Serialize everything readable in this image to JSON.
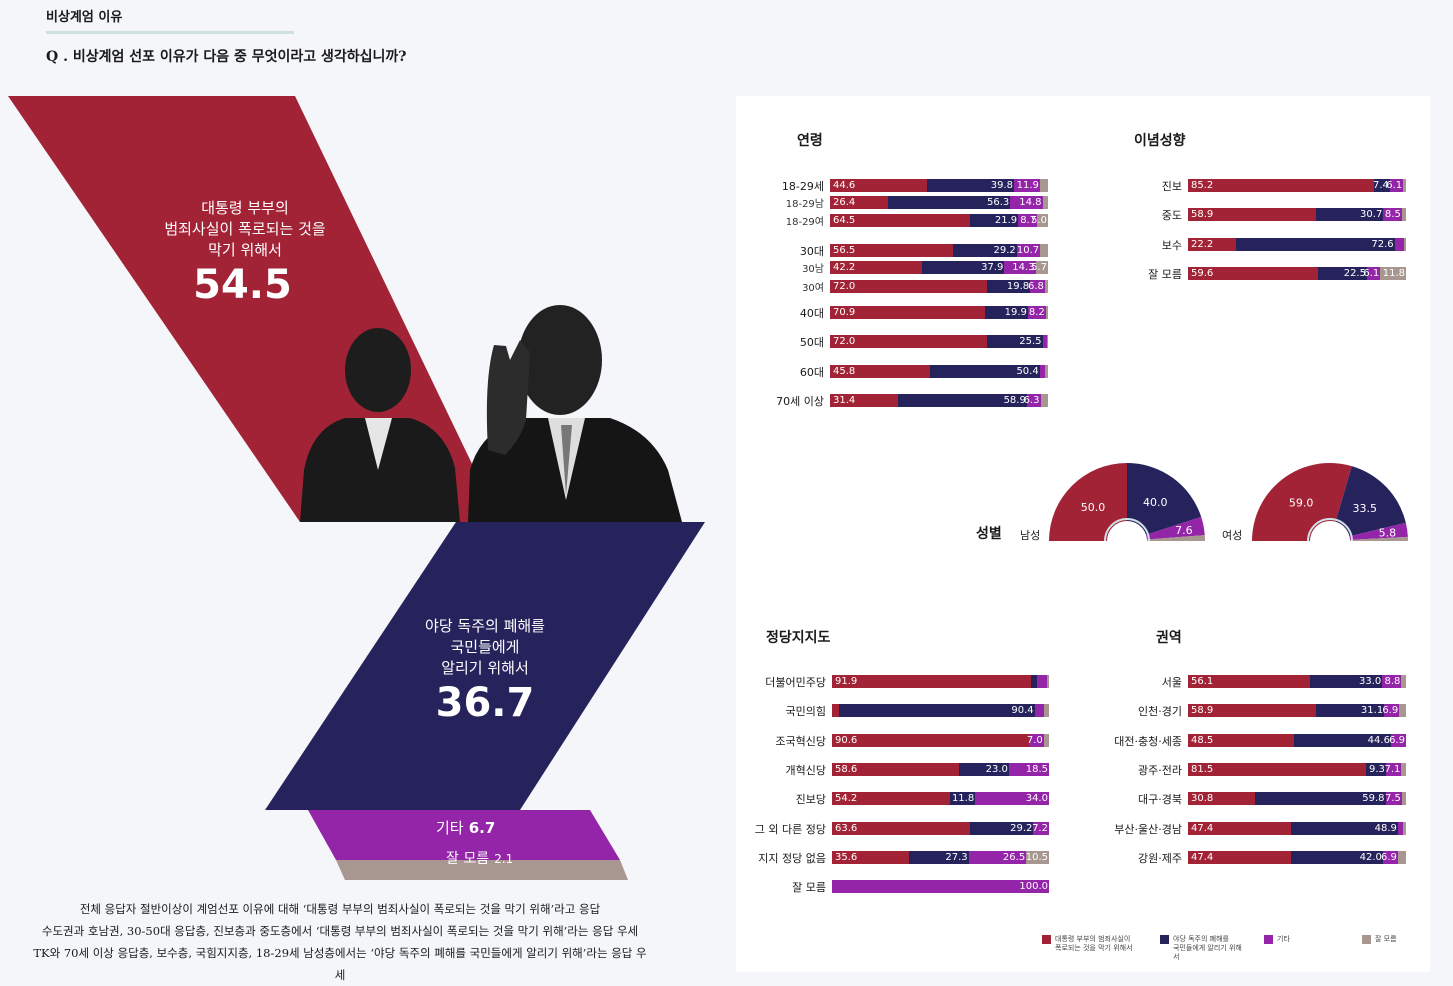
{
  "section_title": "비상계엄 이유",
  "question": "Q . 비상계엄 선포 이유가 다음 중 무엇이라고 생각하십니까?",
  "colors": {
    "hide_scandal": "#a32336",
    "opposition": "#26235c",
    "other": "#9424a8",
    "dont_know": "#a89690"
  },
  "overall": {
    "hide_scandal": {
      "label_lines": [
        "대통령 부부의",
        "범죄사실이 폭로되는 것을",
        "막기 위해서"
      ],
      "value": "54.5"
    },
    "opposition": {
      "label_lines": [
        "야당 독주의 폐해를",
        "국민들에게",
        "알리기 위해서"
      ],
      "value": "36.7"
    },
    "other": {
      "label": "기타",
      "value": "6.7"
    },
    "dont_know": {
      "label": "잘 모름",
      "value": "2.1"
    }
  },
  "summary_lines": [
    "전체 응답자 절반이상이 계엄선포 이유에 대해 ‘대통령 부부의 범죄사실이 폭로되는 것을 막기 위해’라고 응답",
    "수도권과 호남권, 30-50대 응답층, 진보층과 중도층에서 ‘대통령 부부의 범죄사실이 폭로되는 것을 막기 위해’라는 응답 우세",
    "TK와 70세 이상 응답층, 보수층, 국힘지지층, 18-29세 남성층에서는 ‘야당 독주의 폐해를 국민들에게 알리기 위해’라는 응답 우세"
  ],
  "legend": [
    {
      "key": "hide_scandal",
      "label_lines": [
        "대통령 부부의 범죄사실이",
        "폭로되는 것을 막기 위해서"
      ]
    },
    {
      "key": "opposition",
      "label_lines": [
        "야당 독주의 폐해를",
        "국민들에게 알리기 위해서"
      ]
    },
    {
      "key": "other",
      "label_lines": [
        "기타"
      ]
    },
    {
      "key": "dont_know",
      "label_lines": [
        "잘 모름"
      ]
    }
  ],
  "gender": {
    "title": "성별",
    "groups": [
      {
        "name": "남성",
        "values": [
          50.0,
          40.0,
          7.6,
          2.4
        ],
        "labels": [
          "50.0",
          "40.0",
          "7.6",
          ""
        ]
      },
      {
        "name": "여성",
        "values": [
          59.0,
          33.5,
          5.8,
          1.7
        ],
        "labels": [
          "59.0",
          "33.5",
          "5.8",
          ""
        ]
      }
    ]
  },
  "chart_data": [
    {
      "type": "bar",
      "stacked": true,
      "title": "연령",
      "series_keys": [
        "hide_scandal",
        "opposition",
        "other",
        "dont_know"
      ],
      "rows": [
        {
          "label": "18-29세",
          "sub": false,
          "values": [
            44.6,
            39.8,
            11.9,
            3.7
          ],
          "labels": [
            "44.6",
            "39.8",
            "11.9",
            ""
          ]
        },
        {
          "label": "18-29남",
          "sub": true,
          "values": [
            26.4,
            56.3,
            14.8,
            2.5
          ],
          "labels": [
            "26.4",
            "56.3",
            "14.8",
            ""
          ]
        },
        {
          "label": "18-29여",
          "sub": true,
          "values": [
            64.5,
            21.9,
            8.7,
            5.0
          ],
          "labels": [
            "64.5",
            "21.9",
            "8.7",
            "5.0"
          ]
        },
        {
          "label": "30대",
          "sub": false,
          "values": [
            56.5,
            29.2,
            10.7,
            3.6
          ],
          "labels": [
            "56.5",
            "29.2",
            "10.7",
            ""
          ]
        },
        {
          "label": "30남",
          "sub": true,
          "values": [
            42.2,
            37.9,
            14.3,
            5.7
          ],
          "labels": [
            "42.2",
            "37.9",
            "14.3",
            "5.7"
          ]
        },
        {
          "label": "30여",
          "sub": true,
          "values": [
            72.0,
            19.8,
            6.8,
            1.4
          ],
          "labels": [
            "72.0",
            "19.8",
            "6.8",
            ""
          ]
        },
        {
          "label": "40대",
          "sub": false,
          "values": [
            70.9,
            19.9,
            8.2,
            1.0
          ],
          "labels": [
            "70.9",
            "19.9",
            "8.2",
            ""
          ]
        },
        {
          "label": "50대",
          "sub": false,
          "values": [
            72.0,
            25.5,
            2.0,
            0.5
          ],
          "labels": [
            "72.0",
            "25.5",
            "",
            ""
          ]
        },
        {
          "label": "60대",
          "sub": false,
          "values": [
            45.8,
            50.4,
            2.5,
            1.3
          ],
          "labels": [
            "45.8",
            "50.4",
            "",
            ""
          ]
        },
        {
          "label": "70세 이상",
          "sub": false,
          "values": [
            31.4,
            58.9,
            6.3,
            3.4
          ],
          "labels": [
            "31.4",
            "58.9",
            "6.3",
            ""
          ]
        }
      ]
    },
    {
      "type": "bar",
      "stacked": true,
      "title": "이념성향",
      "series_keys": [
        "hide_scandal",
        "opposition",
        "other",
        "dont_know"
      ],
      "rows": [
        {
          "label": "진보",
          "sub": false,
          "values": [
            85.2,
            7.4,
            6.1,
            1.3
          ],
          "labels": [
            "85.2",
            "7.4",
            "6.1",
            ""
          ]
        },
        {
          "label": "중도",
          "sub": false,
          "values": [
            58.9,
            30.7,
            8.5,
            1.9
          ],
          "labels": [
            "58.9",
            "30.7",
            "8.5",
            ""
          ]
        },
        {
          "label": "보수",
          "sub": false,
          "values": [
            22.2,
            72.6,
            4.2,
            1.0
          ],
          "labels": [
            "22.2",
            "72.6",
            "",
            ""
          ]
        },
        {
          "label": "잘 모름",
          "sub": false,
          "values": [
            59.6,
            22.5,
            6.1,
            11.8
          ],
          "labels": [
            "59.6",
            "22.5",
            "6.1",
            "11.8"
          ]
        }
      ]
    },
    {
      "type": "bar",
      "stacked": true,
      "title": "정당지지도",
      "series_keys": [
        "hide_scandal",
        "opposition",
        "other",
        "dont_know"
      ],
      "rows": [
        {
          "label": "더불어민주당",
          "sub": false,
          "values": [
            91.9,
            2.5,
            4.5,
            1.1
          ],
          "labels": [
            "91.9",
            "",
            "",
            ""
          ]
        },
        {
          "label": "국민의힘",
          "sub": false,
          "values": [
            3.0,
            90.4,
            4.5,
            2.1
          ],
          "labels": [
            "",
            "90.4",
            "",
            ""
          ]
        },
        {
          "label": "조국혁신당",
          "sub": false,
          "values": [
            90.6,
            0.0,
            7.0,
            2.4
          ],
          "labels": [
            "90.6",
            "",
            "7.0",
            ""
          ]
        },
        {
          "label": "개혁신당",
          "sub": false,
          "values": [
            58.6,
            23.0,
            18.5,
            0.0
          ],
          "labels": [
            "58.6",
            "23.0",
            "18.5",
            ""
          ]
        },
        {
          "label": "진보당",
          "sub": false,
          "values": [
            54.2,
            11.8,
            34.0,
            0.0
          ],
          "labels": [
            "54.2",
            "11.8",
            "34.0",
            ""
          ]
        },
        {
          "label": "그 외 다른 정당",
          "sub": false,
          "values": [
            63.6,
            29.2,
            7.2,
            0.0
          ],
          "labels": [
            "63.6",
            "29.2",
            "7.2",
            ""
          ]
        },
        {
          "label": "지지 정당 없음",
          "sub": false,
          "values": [
            35.6,
            27.3,
            26.5,
            10.5
          ],
          "labels": [
            "35.6",
            "27.3",
            "26.5",
            "10.5"
          ]
        },
        {
          "label": "잘 모름",
          "sub": false,
          "values": [
            0.0,
            0.0,
            100.0,
            0.0
          ],
          "labels": [
            "",
            "",
            "100.0",
            ""
          ]
        }
      ]
    },
    {
      "type": "bar",
      "stacked": true,
      "title": "권역",
      "series_keys": [
        "hide_scandal",
        "opposition",
        "other",
        "dont_know"
      ],
      "rows": [
        {
          "label": "서울",
          "sub": false,
          "values": [
            56.1,
            33.0,
            8.8,
            2.1
          ],
          "labels": [
            "56.1",
            "33.0",
            "8.8",
            ""
          ]
        },
        {
          "label": "인천·경기",
          "sub": false,
          "values": [
            58.9,
            31.1,
            6.9,
            3.1
          ],
          "labels": [
            "58.9",
            "31.1",
            "6.9",
            ""
          ]
        },
        {
          "label": "대전·충청·세종",
          "sub": false,
          "values": [
            48.5,
            44.6,
            6.9,
            0.0
          ],
          "labels": [
            "48.5",
            "44.6",
            "6.9",
            ""
          ]
        },
        {
          "label": "광주·전라",
          "sub": false,
          "values": [
            81.5,
            9.3,
            7.1,
            2.1
          ],
          "labels": [
            "81.5",
            "9.3",
            "7.1",
            ""
          ]
        },
        {
          "label": "대구·경북",
          "sub": false,
          "values": [
            30.8,
            59.8,
            7.5,
            1.9
          ],
          "labels": [
            "30.8",
            "59.8",
            "7.5",
            ""
          ]
        },
        {
          "label": "부산·울산·경남",
          "sub": false,
          "values": [
            47.4,
            48.9,
            2.5,
            1.2
          ],
          "labels": [
            "47.4",
            "48.9",
            "",
            ""
          ]
        },
        {
          "label": "강원·제주",
          "sub": false,
          "values": [
            47.4,
            42.0,
            6.9,
            3.7
          ],
          "labels": [
            "47.4",
            "42.0",
            "6.9",
            ""
          ]
        }
      ]
    }
  ]
}
